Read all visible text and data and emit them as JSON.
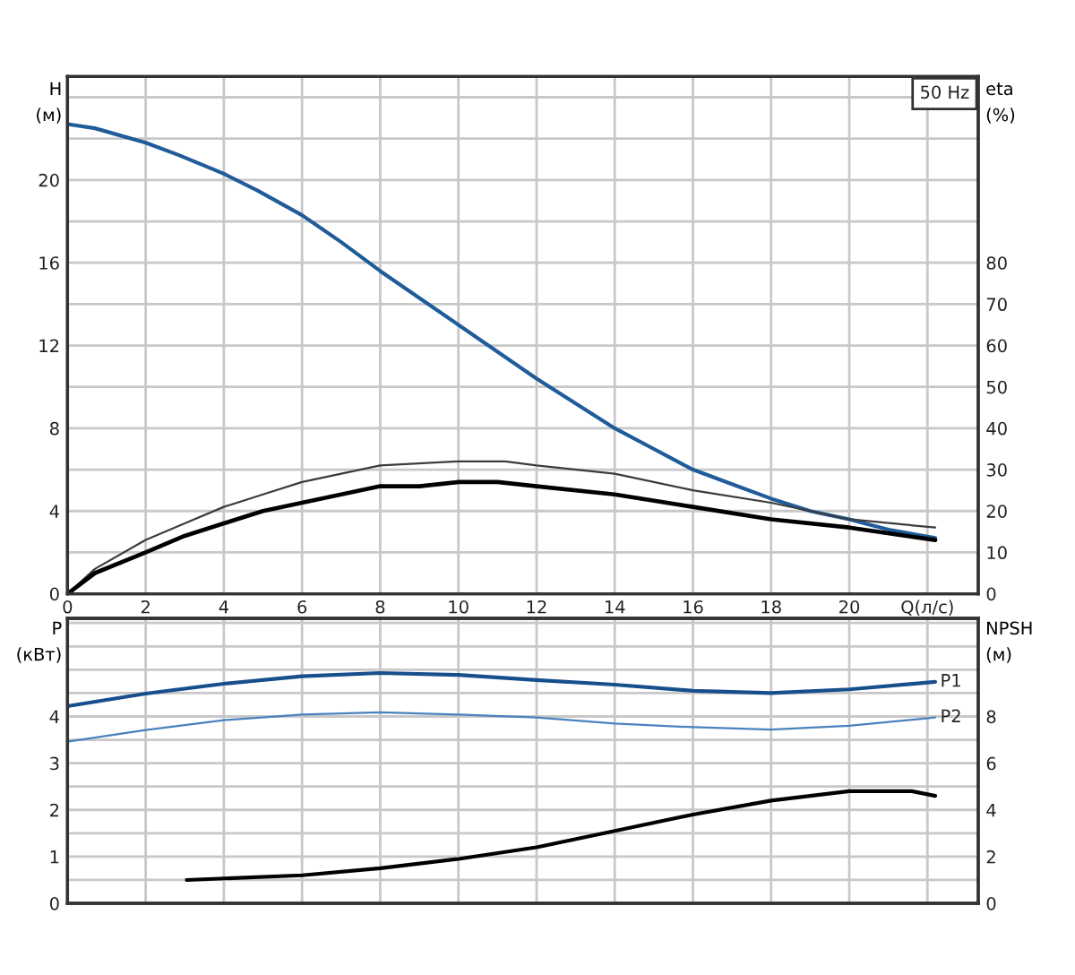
{
  "chart_data": [
    {
      "type": "line",
      "title": "50 Hz",
      "ylabel": "H\n(м)",
      "y2label": "eta\n(%)",
      "grid": true,
      "xlim": [
        0,
        23.3
      ],
      "xticks": [
        0,
        2,
        4,
        6,
        8,
        10,
        12,
        14,
        16,
        18,
        20,
        {
          "value": 22,
          "label": "Q(л/с)"
        }
      ],
      "ylim": [
        0,
        25
      ],
      "yticks": [
        0,
        {
          "value": 2,
          "label": null
        },
        4,
        {
          "value": 6,
          "label": null
        },
        8,
        {
          "value": 10,
          "label": null
        },
        12,
        {
          "value": 14,
          "label": null
        },
        16,
        {
          "value": 18,
          "label": null
        },
        20,
        {
          "value": 22,
          "label": null
        },
        {
          "value": 24,
          "label": null
        }
      ],
      "y2lim": [
        0,
        125
      ],
      "y2ticks": [
        0,
        10,
        20,
        30,
        40,
        50,
        60,
        70,
        80
      ],
      "series": [
        {
          "color": "#1f5c99",
          "x": [
            0,
            0.7,
            2,
            2.85,
            4,
            4.85,
            6,
            7,
            8,
            9,
            10,
            11,
            12,
            13,
            14,
            15,
            16,
            17,
            18,
            19,
            20,
            21,
            22.2
          ],
          "values": [
            22.7,
            22.5,
            21.8,
            21.2,
            20.3,
            19.5,
            18.3,
            17.0,
            15.6,
            14.3,
            13.0,
            11.7,
            10.4,
            9.2,
            8.0,
            7.0,
            6.0,
            5.3,
            4.6,
            4.0,
            3.6,
            3.1,
            2.7
          ]
        },
        {
          "color": "#3c3c3c",
          "axis": "y2",
          "x": [
            0,
            0.7,
            2,
            3,
            4,
            5,
            6,
            8,
            10,
            11.2,
            12,
            14,
            16,
            18,
            20,
            22.2
          ],
          "values": [
            0,
            6,
            13,
            17,
            21,
            24,
            27,
            31,
            32,
            32,
            31,
            29,
            25,
            22,
            18,
            16
          ]
        },
        {
          "color": "#000000",
          "axis": "y2",
          "x": [
            0,
            0.7,
            2,
            3,
            4,
            5,
            6,
            7,
            8,
            9,
            10,
            11,
            12,
            14,
            16,
            18,
            20,
            22.2
          ],
          "values": [
            0,
            5,
            10,
            14,
            17,
            20,
            22,
            24,
            26,
            26,
            27,
            27,
            26,
            24,
            21,
            18,
            16,
            13
          ]
        }
      ]
    },
    {
      "type": "line",
      "ylabel": "P\n(кВт)",
      "y2label": "NPSH\n(м)",
      "grid": true,
      "tick_labels": "y",
      "xlim": [
        0,
        23.3
      ],
      "xticks": [
        0,
        2,
        4,
        6,
        8,
        10,
        12,
        14,
        16,
        18,
        20,
        {
          "value": 22,
          "label": null
        }
      ],
      "ylim": [
        0,
        6.1
      ],
      "yticks": [
        0,
        {
          "value": 0.5,
          "label": null
        },
        1,
        {
          "value": 1.5,
          "label": null
        },
        2,
        {
          "value": 2.5,
          "label": null
        },
        3,
        {
          "value": 3.5,
          "label": null
        },
        4,
        {
          "value": 4.5,
          "label": null
        },
        {
          "value": 5,
          "label": null
        },
        {
          "value": 5.5,
          "label": null
        },
        {
          "value": 6,
          "label": null
        }
      ],
      "y2lim": [
        0,
        12.2
      ],
      "y2ticks": [
        0,
        2,
        4,
        6,
        8
      ],
      "series": [
        {
          "name": "P1",
          "color": "#174f8c",
          "x": [
            0,
            2,
            4,
            6,
            8,
            10,
            12,
            14,
            16,
            18,
            20,
            22.2
          ],
          "values": [
            4.22,
            4.49,
            4.7,
            4.86,
            4.93,
            4.89,
            4.78,
            4.68,
            4.55,
            4.5,
            4.58,
            4.74
          ]
        },
        {
          "name": "P2",
          "color": "#4a82bd",
          "x": [
            0,
            2,
            4,
            6,
            8,
            10,
            12,
            14,
            16,
            18,
            20,
            22.2
          ],
          "values": [
            3.46,
            3.71,
            3.92,
            4.04,
            4.09,
            4.04,
            3.98,
            3.85,
            3.77,
            3.72,
            3.8,
            3.98
          ]
        },
        {
          "color": "#000000",
          "axis": "y2",
          "x": [
            3.05,
            6,
            8,
            10,
            12,
            14,
            16,
            18,
            20,
            21.6,
            22.2
          ],
          "values": [
            1.0,
            1.2,
            1.5,
            1.9,
            2.4,
            3.1,
            3.8,
            4.4,
            4.8,
            4.8,
            4.6
          ]
        }
      ]
    }
  ]
}
